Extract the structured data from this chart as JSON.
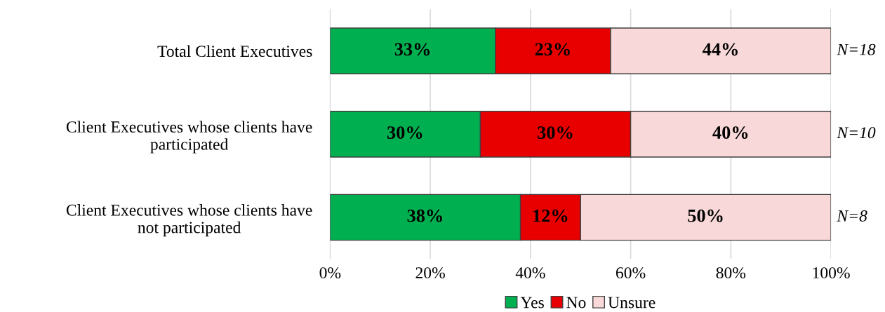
{
  "chart_data": {
    "type": "bar",
    "orientation": "horizontal",
    "stacked": true,
    "categories": [
      "Total Client Executives",
      "Client Executives whose clients have participated",
      "Client Executives whose clients have not participated"
    ],
    "series": [
      {
        "name": "Yes",
        "color": "#00b050",
        "values": [
          33,
          30,
          38
        ],
        "value_labels": [
          "33%",
          "30%",
          "38%"
        ]
      },
      {
        "name": "No",
        "color": "#e80000",
        "values": [
          23,
          30,
          12
        ],
        "value_labels": [
          "23%",
          "30%",
          "12%"
        ]
      },
      {
        "name": "Unsure",
        "color": "#f8d8d8",
        "values": [
          44,
          40,
          50
        ],
        "value_labels": [
          "44%",
          "40%",
          "50%"
        ]
      }
    ],
    "xlim": [
      0,
      100
    ],
    "xticks": [
      {
        "value": 0,
        "label": "0%"
      },
      {
        "value": 20,
        "label": "20%"
      },
      {
        "value": 40,
        "label": "40%"
      },
      {
        "value": 60,
        "label": "60%"
      },
      {
        "value": 80,
        "label": "80%"
      },
      {
        "value": 100,
        "label": "100%"
      }
    ],
    "grid": "x",
    "legend": "bottom",
    "annotations": [
      "N=18",
      "N=10",
      "N=8"
    ]
  }
}
